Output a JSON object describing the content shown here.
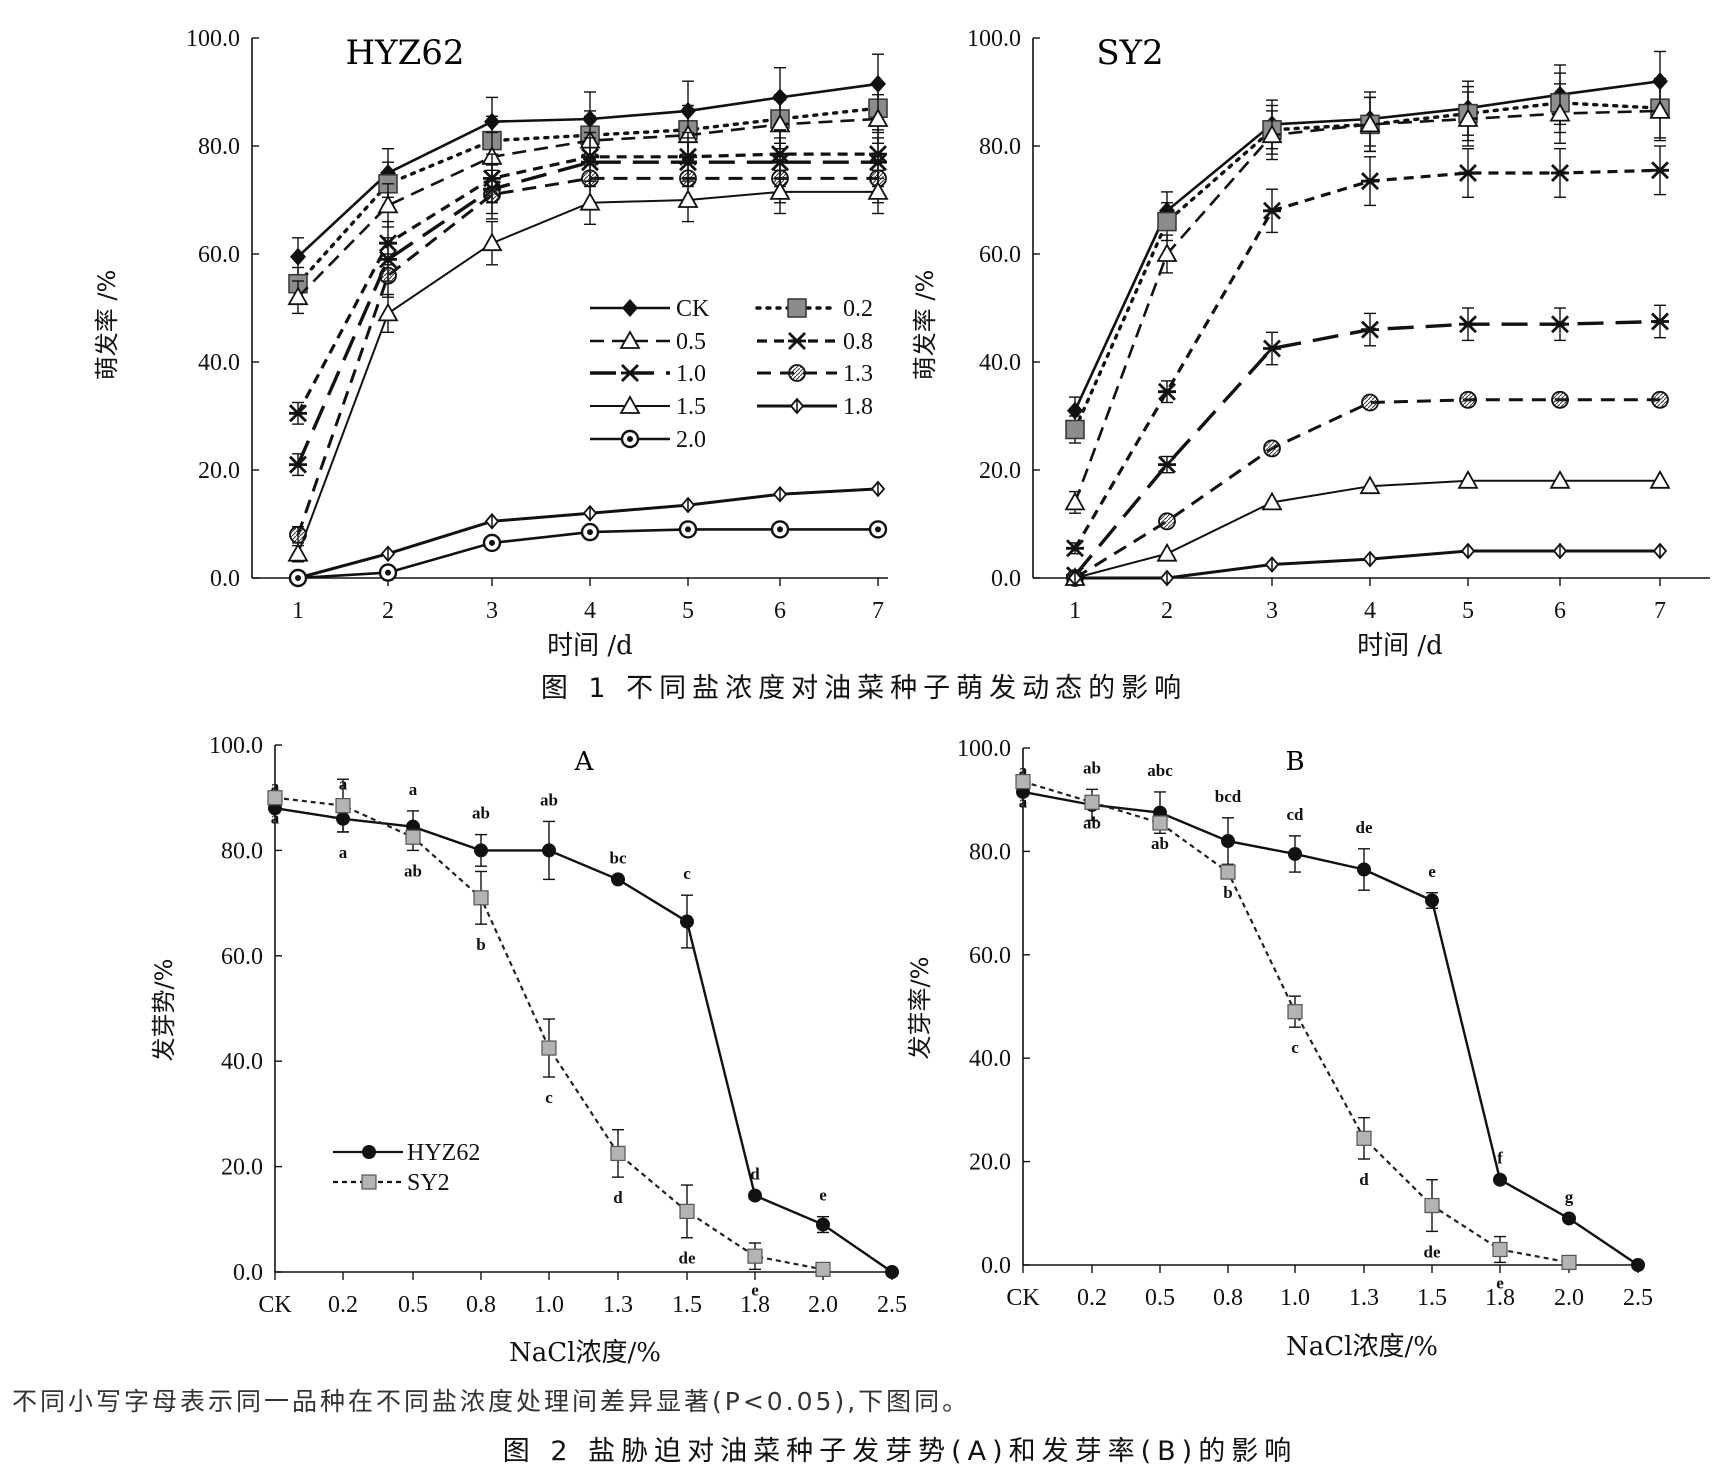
{
  "figure1": {
    "caption": "图 1   不同盐浓度对油菜种子萌发动态的影响",
    "panels": [
      {
        "title": "HYZ62",
        "xlabel": "时间 /d",
        "ylabel": "萌发率 /%",
        "x_ticks": [
          "1",
          "2",
          "3",
          "4",
          "5",
          "6",
          "7"
        ],
        "y_ticks": [
          "0.0",
          "20.0",
          "40.0",
          "60.0",
          "80.0",
          "100.0"
        ]
      },
      {
        "title": "SY2",
        "xlabel": "时间 /d",
        "ylabel": "萌发率 /%",
        "x_ticks": [
          "1",
          "2",
          "3",
          "4",
          "5",
          "6",
          "7"
        ],
        "y_ticks": [
          "0.0",
          "20.0",
          "40.0",
          "60.0",
          "80.0",
          "100.0"
        ]
      }
    ],
    "legend": [
      "CK",
      "0.2",
      "0.5",
      "0.8",
      "1.0",
      "1.3",
      "1.5",
      "1.8",
      "2.0"
    ]
  },
  "figure2": {
    "caption": "图 2   盐胁迫对油菜种子发芽势(A)和发芽率(B)的影响",
    "note": "不同小写字母表示同一品种在不同盐浓度处理间差异显著(P<0.05),下图同。",
    "panels": [
      {
        "title": "A",
        "xlabel": "NaCl浓度/%",
        "ylabel": "发芽势/%",
        "x_ticks": [
          "CK",
          "0.2",
          "0.5",
          "0.8",
          "1.0",
          "1.3",
          "1.5",
          "1.8",
          "2.0",
          "2.5"
        ],
        "y_ticks": [
          "0.0",
          "20.0",
          "40.0",
          "60.0",
          "80.0",
          "100.0"
        ]
      },
      {
        "title": "B",
        "xlabel": "NaCl浓度/%",
        "ylabel": "发芽率/%",
        "x_ticks": [
          "CK",
          "0.2",
          "0.5",
          "0.8",
          "1.0",
          "1.3",
          "1.5",
          "1.8",
          "2.0",
          "2.5"
        ],
        "y_ticks": [
          "0.0",
          "20.0",
          "40.0",
          "60.0",
          "80.0",
          "100.0"
        ]
      }
    ],
    "legend": [
      "HYZ62",
      "SY2"
    ]
  },
  "chart_data": [
    {
      "type": "line",
      "title": "HYZ62",
      "xlabel": "时间 /d",
      "ylabel": "萌发率 /%",
      "x": [
        1,
        2,
        3,
        4,
        5,
        6,
        7
      ],
      "ylim": [
        0,
        100
      ],
      "series": [
        {
          "name": "CK",
          "values": [
            59.5,
            75.0,
            84.5,
            85.0,
            86.5,
            89.0,
            91.5
          ],
          "err": [
            3.5,
            4.5,
            4.5,
            5.0,
            5.5,
            5.5,
            5.5
          ]
        },
        {
          "name": "0.2",
          "values": [
            54.5,
            73.0,
            81.0,
            82.0,
            83.0,
            85.0,
            87.0
          ],
          "err": [
            3.0,
            4.0,
            4.5,
            4.5,
            4.5,
            4.5,
            4.5
          ]
        },
        {
          "name": "0.5",
          "values": [
            52.0,
            69.0,
            78.0,
            81.0,
            82.0,
            84.0,
            85.0
          ],
          "err": [
            3.0,
            4.0,
            4.5,
            4.5,
            4.5,
            4.5,
            4.5
          ]
        },
        {
          "name": "0.8",
          "values": [
            30.5,
            62.0,
            74.0,
            78.0,
            78.0,
            78.5,
            78.5
          ],
          "err": [
            2.0,
            4.0,
            4.5,
            4.5,
            4.5,
            4.5,
            4.5
          ]
        },
        {
          "name": "1.0",
          "values": [
            21.0,
            59.0,
            72.0,
            77.0,
            77.0,
            77.0,
            77.0
          ],
          "err": [
            2.0,
            4.0,
            4.5,
            4.5,
            4.5,
            4.5,
            4.5
          ]
        },
        {
          "name": "1.3",
          "values": [
            8.0,
            56.0,
            71.0,
            74.0,
            74.0,
            74.0,
            74.0
          ],
          "err": [
            1.5,
            4.0,
            4.5,
            4.5,
            4.5,
            4.5,
            4.5
          ]
        },
        {
          "name": "1.5",
          "values": [
            4.5,
            49.0,
            62.0,
            69.5,
            70.0,
            71.5,
            71.5
          ],
          "err": [
            1.5,
            3.5,
            4.0,
            4.0,
            4.0,
            4.0,
            4.0
          ]
        },
        {
          "name": "1.8",
          "values": [
            0.0,
            4.5,
            10.5,
            12.0,
            13.5,
            15.5,
            16.5
          ],
          "err": [
            0,
            0,
            0,
            0,
            0,
            0,
            0
          ]
        },
        {
          "name": "2.0",
          "values": [
            0.0,
            1.0,
            6.5,
            8.5,
            9.0,
            9.0,
            9.0
          ],
          "err": [
            0,
            0,
            0,
            0,
            0,
            0,
            0
          ]
        }
      ]
    },
    {
      "type": "line",
      "title": "SY2",
      "xlabel": "时间 /d",
      "ylabel": "萌发率 /%",
      "x": [
        1,
        2,
        3,
        4,
        5,
        6,
        7
      ],
      "ylim": [
        0,
        100
      ],
      "series": [
        {
          "name": "CK",
          "values": [
            31.0,
            68.0,
            84.0,
            85.0,
            87.0,
            89.5,
            92.0
          ],
          "err": [
            2.5,
            3.5,
            4.5,
            5.0,
            5.0,
            5.5,
            5.5
          ]
        },
        {
          "name": "0.2",
          "values": [
            27.5,
            66.0,
            83.0,
            84.0,
            86.0,
            88.0,
            87.0
          ],
          "err": [
            2.5,
            3.5,
            4.5,
            5.0,
            5.0,
            5.5,
            5.5
          ]
        },
        {
          "name": "0.5",
          "values": [
            14.0,
            60.0,
            82.0,
            84.0,
            85.0,
            86.0,
            86.5
          ],
          "err": [
            2.0,
            3.5,
            4.5,
            5.0,
            5.0,
            5.5,
            5.5
          ]
        },
        {
          "name": "0.8",
          "values": [
            5.5,
            34.5,
            68.0,
            73.5,
            75.0,
            75.0,
            75.5
          ],
          "err": [
            1.0,
            2.0,
            4.0,
            4.5,
            4.5,
            4.5,
            4.5
          ]
        },
        {
          "name": "1.0",
          "values": [
            0.5,
            21.0,
            42.5,
            46.0,
            47.0,
            47.0,
            47.5
          ],
          "err": [
            0.5,
            1.5,
            3.0,
            3.0,
            3.0,
            3.0,
            3.0
          ]
        },
        {
          "name": "1.3",
          "values": [
            0.0,
            10.5,
            24.0,
            32.5,
            33.0,
            33.0,
            33.0
          ],
          "err": [
            0,
            0,
            0,
            0,
            0,
            0,
            0
          ]
        },
        {
          "name": "1.5",
          "values": [
            0.0,
            4.5,
            14.0,
            17.0,
            18.0,
            18.0,
            18.0
          ],
          "err": [
            0,
            0,
            0,
            0,
            0,
            0,
            0
          ]
        },
        {
          "name": "1.8",
          "values": [
            0.0,
            0.0,
            2.5,
            3.5,
            5.0,
            5.0,
            5.0
          ],
          "err": [
            0,
            0,
            0,
            0,
            0,
            0,
            0
          ]
        }
      ]
    },
    {
      "type": "line",
      "title": "A",
      "xlabel": "NaCl浓度/%",
      "ylabel": "发芽势/%",
      "categories": [
        "CK",
        "0.2",
        "0.5",
        "0.8",
        "1.0",
        "1.3",
        "1.5",
        "1.8",
        "2.0",
        "2.5"
      ],
      "ylim": [
        0,
        100
      ],
      "series": [
        {
          "name": "HYZ62",
          "values": [
            88.0,
            86.0,
            84.5,
            80.0,
            80.0,
            74.5,
            66.5,
            14.5,
            9.0,
            0.0
          ],
          "err": [
            0,
            2.5,
            3.0,
            3.0,
            5.5,
            0,
            5.0,
            0,
            1.5,
            0
          ],
          "labels": [
            "a",
            "a",
            "a",
            "ab",
            "ab",
            "bc",
            "c",
            "d",
            "e",
            ""
          ]
        },
        {
          "name": "SY2",
          "values": [
            90.0,
            88.5,
            82.5,
            71.0,
            42.5,
            22.5,
            11.5,
            3.0,
            0.5,
            null
          ],
          "err": [
            0,
            5.0,
            2.5,
            5.0,
            5.5,
            4.5,
            5.0,
            2.5,
            0,
            0
          ],
          "labels": [
            "a",
            "a",
            "ab",
            "b",
            "c",
            "d",
            "de",
            "e",
            "",
            ""
          ]
        }
      ]
    },
    {
      "type": "line",
      "title": "B",
      "xlabel": "NaCl浓度/%",
      "ylabel": "发芽率/%",
      "categories": [
        "CK",
        "0.2",
        "0.5",
        "0.8",
        "1.0",
        "1.3",
        "1.5",
        "1.8",
        "2.0",
        "2.5"
      ],
      "ylim": [
        0,
        100
      ],
      "series": [
        {
          "name": "HYZ62",
          "values": [
            91.5,
            89.0,
            87.5,
            82.0,
            79.5,
            76.5,
            70.5,
            16.5,
            9.0,
            0.0
          ],
          "err": [
            0,
            3.0,
            4.0,
            4.5,
            3.5,
            4.0,
            1.5,
            0,
            0,
            0
          ],
          "labels": [
            "a",
            "ab",
            "abc",
            "bcd",
            "cd",
            "de",
            "e",
            "f",
            "g",
            ""
          ]
        },
        {
          "name": "SY2",
          "values": [
            93.5,
            89.5,
            85.5,
            76.0,
            49.0,
            24.5,
            11.5,
            3.0,
            0.5,
            null
          ],
          "err": [
            0,
            0,
            0,
            0,
            3.0,
            4.0,
            5.0,
            2.5,
            0,
            0
          ],
          "labels": [
            "a",
            "ab",
            "ab",
            "b",
            "c",
            "d",
            "de",
            "e",
            "",
            ""
          ]
        }
      ]
    }
  ]
}
